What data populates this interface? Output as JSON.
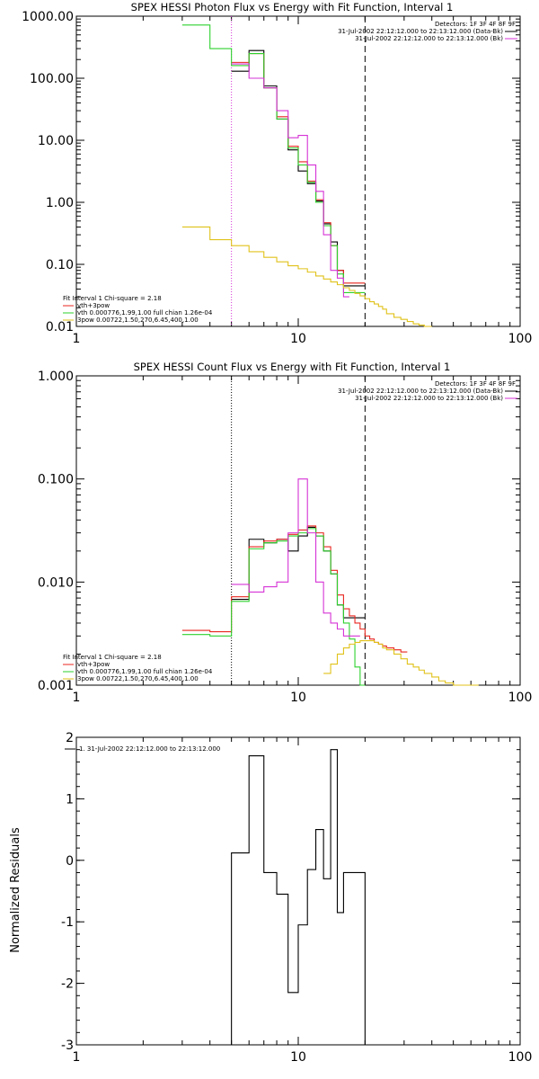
{
  "colors": {
    "black": "#000000",
    "red": "#e8261f",
    "green": "#2ed12e",
    "magenta": "#d633d6",
    "yellow": "#e0c21a"
  },
  "chart_data": [
    {
      "type": "line",
      "title": "SPEX HESSI Photon Flux vs Energy with Fit Function, Interval 1",
      "xscale": "log",
      "yscale": "log",
      "xlim": [
        1,
        100
      ],
      "ylim": [
        0.01,
        1000
      ],
      "xticks": [
        "1",
        "10",
        "100"
      ],
      "yticks": [
        "0.01",
        "0.10",
        "1.00",
        "10.00",
        "100.00",
        "1000.00"
      ],
      "vlines": [
        {
          "x": 5.0,
          "style": "dotted",
          "color": "magenta"
        },
        {
          "x": 20.0,
          "style": "dashed",
          "color": "black"
        }
      ],
      "legend_top": {
        "position": "top-right",
        "header": "Detectors: 1F 3F 4F 8F 9F",
        "entries": [
          {
            "label": "31-Jul-2002 22:12:12.000 to 22:13:12.000 (Data-Bk)",
            "color": "black"
          },
          {
            "label": "31-Jul-2002 22:12:12.000 to 22:13:12.000 (Bk)",
            "color": "magenta"
          }
        ]
      },
      "legend_fit": {
        "position": "bottom-left",
        "header": "Fit Interval 1    Chi-square = 2.18",
        "entries": [
          {
            "label": "vth+3pow",
            "color": "red"
          },
          {
            "label": "vth 0.000776,1.99,1.00  full chian 1.26e-04",
            "color": "green"
          },
          {
            "label": "3pow 0.00722,1.50,270,6.45,400,1.00",
            "color": "yellow"
          }
        ]
      },
      "series": [
        {
          "color": "black",
          "edges": [
            5,
            6,
            7,
            8,
            9,
            10,
            11,
            12,
            13,
            14,
            15,
            16,
            17,
            18,
            19,
            20
          ],
          "values": [
            130,
            280,
            75,
            22,
            7,
            3.2,
            2,
            1.05,
            0.45,
            0.23,
            0.08,
            0.045,
            0.045,
            0.045,
            0.045
          ]
        },
        {
          "color": "red",
          "edges": [
            5,
            6,
            7,
            8,
            9,
            10,
            11,
            12,
            13,
            14,
            15,
            16,
            17,
            18,
            19,
            20
          ],
          "values": [
            180,
            250,
            70,
            24,
            8,
            4.5,
            2.2,
            1.1,
            0.47,
            0.2,
            0.08,
            0.05,
            0.05,
            0.05,
            0.05
          ]
        },
        {
          "color": "green",
          "edges": [
            3,
            4,
            5,
            6,
            7,
            8,
            9,
            10,
            11,
            12,
            13,
            14,
            15,
            16,
            17,
            18,
            19,
            20
          ],
          "values": [
            720,
            300,
            160,
            250,
            70,
            22,
            7.5,
            4,
            2.1,
            1.0,
            0.42,
            0.2,
            0.07,
            0.035,
            0.035,
            0.035,
            0.035
          ]
        },
        {
          "color": "magenta",
          "edges": [
            5,
            6,
            7,
            8,
            9,
            10,
            11,
            12,
            13,
            14,
            15,
            16,
            17
          ],
          "values": [
            170,
            100,
            70,
            30,
            11,
            12,
            4,
            1.5,
            0.3,
            0.08,
            0.06,
            0.03
          ]
        },
        {
          "color": "yellow",
          "edges": [
            3,
            4,
            5,
            6,
            7,
            8,
            9,
            10,
            11,
            12,
            13,
            14,
            15,
            16,
            17,
            18,
            19,
            20,
            21,
            22,
            23,
            24,
            25,
            27,
            29,
            31,
            33,
            35,
            37,
            40
          ],
          "values": [
            0.4,
            0.25,
            0.2,
            0.16,
            0.13,
            0.11,
            0.095,
            0.085,
            0.075,
            0.065,
            0.058,
            0.052,
            0.047,
            0.042,
            0.038,
            0.034,
            0.031,
            0.028,
            0.025,
            0.023,
            0.021,
            0.019,
            0.016,
            0.014,
            0.013,
            0.012,
            0.011,
            0.0105,
            0.01
          ]
        }
      ]
    },
    {
      "type": "line",
      "title": "SPEX HESSI Count Flux vs Energy with Fit Function, Interval 1",
      "xscale": "log",
      "yscale": "log",
      "xlim": [
        1,
        100
      ],
      "ylim": [
        0.001,
        1.0
      ],
      "xticks": [
        "1",
        "10",
        "100"
      ],
      "yticks": [
        "0.001",
        "0.010",
        "0.100",
        "1.000"
      ],
      "vlines": [
        {
          "x": 5.0,
          "style": "dotted",
          "color": "black"
        },
        {
          "x": 20.0,
          "style": "dashed",
          "color": "black"
        }
      ],
      "legend_top": {
        "position": "top-right",
        "header": "Detectors: 1F 3F 4F 8F 9F",
        "entries": [
          {
            "label": "31-Jul-2002 22:12:12.000 to 22:13:12.000 (Data-Bk)",
            "color": "black"
          },
          {
            "label": "31-Jul-2002 22:12:12.000 to 22:13:12.000 (Bk)",
            "color": "magenta"
          }
        ]
      },
      "legend_fit": {
        "position": "bottom-left",
        "header": "Fit Interval 1    Chi-square = 2.18",
        "entries": [
          {
            "label": "vth+3pow",
            "color": "red"
          },
          {
            "label": "vth 0.000776,1.99,1.00  full chian 1.26e-04",
            "color": "green"
          },
          {
            "label": "3pow 0.00722,1.50,270,6.45,400,1.00",
            "color": "yellow"
          }
        ]
      },
      "series": [
        {
          "color": "black",
          "edges": [
            5,
            6,
            7,
            8,
            9,
            10,
            11,
            12,
            13,
            14,
            15,
            16,
            17,
            18,
            19,
            20
          ],
          "values": [
            0.0068,
            0.026,
            0.024,
            0.026,
            0.02,
            0.028,
            0.034,
            0.028,
            0.02,
            0.012,
            0.006,
            0.0045,
            0.0045,
            0.0045,
            0.0045
          ]
        },
        {
          "color": "red",
          "edges": [
            3,
            4,
            5,
            6,
            7,
            8,
            9,
            10,
            11,
            12,
            13,
            14,
            15,
            16,
            17,
            18,
            19,
            20,
            21,
            22,
            23,
            24,
            25,
            27,
            29,
            31
          ],
          "values": [
            0.0034,
            0.0033,
            0.0072,
            0.022,
            0.025,
            0.026,
            0.029,
            0.032,
            0.035,
            0.03,
            0.022,
            0.013,
            0.0075,
            0.0055,
            0.0047,
            0.004,
            0.0035,
            0.003,
            0.0028,
            0.0026,
            0.0025,
            0.0024,
            0.0023,
            0.0022,
            0.0021
          ]
        },
        {
          "color": "green",
          "edges": [
            3,
            4,
            5,
            6,
            7,
            8,
            9,
            10,
            11,
            12,
            13,
            14,
            15,
            16,
            17,
            18,
            19,
            20
          ],
          "values": [
            0.0031,
            0.003,
            0.0065,
            0.021,
            0.024,
            0.025,
            0.028,
            0.03,
            0.033,
            0.028,
            0.02,
            0.012,
            0.006,
            0.004,
            0.0028,
            0.0015,
            0.001
          ]
        },
        {
          "color": "magenta",
          "edges": [
            5,
            6,
            7,
            8,
            9,
            10,
            11,
            12,
            13,
            14,
            15,
            16,
            17,
            18,
            19
          ],
          "values": [
            0.0095,
            0.008,
            0.009,
            0.01,
            0.03,
            0.1,
            0.03,
            0.01,
            0.005,
            0.004,
            0.0035,
            0.003,
            0.003,
            0.003
          ]
        },
        {
          "color": "yellow",
          "edges": [
            13,
            14,
            15,
            16,
            17,
            18,
            19,
            20,
            21,
            22,
            23,
            24,
            25,
            27,
            29,
            31,
            33,
            35,
            37,
            40,
            43,
            46,
            50,
            55,
            60,
            65
          ],
          "values": [
            0.0013,
            0.0016,
            0.002,
            0.0023,
            0.0025,
            0.0026,
            0.0027,
            0.0027,
            0.0027,
            0.0026,
            0.0025,
            0.0023,
            0.0022,
            0.002,
            0.0018,
            0.0016,
            0.0015,
            0.0014,
            0.0013,
            0.0012,
            0.0011,
            0.00105,
            0.001,
            0.001,
            0.001
          ]
        }
      ]
    },
    {
      "type": "line",
      "title": "",
      "xscale": "log",
      "yscale": "linear",
      "xlim": [
        1,
        100
      ],
      "ylim": [
        -3,
        2
      ],
      "ylabel": "Normalized Residuals",
      "xticks": [
        "1",
        "10",
        "100"
      ],
      "yticks": [
        "-3",
        "-2",
        "-1",
        "0",
        "1",
        "2"
      ],
      "legend": {
        "position": "top-left",
        "entries": [
          {
            "label": "1. 31-Jul-2002 22:12:12.000 to 22:13:12.000",
            "color": "black"
          }
        ]
      },
      "series": [
        {
          "color": "black",
          "edges": [
            5,
            6,
            7,
            8,
            9,
            10,
            11,
            12,
            13,
            14,
            15,
            16,
            17,
            18,
            19,
            20
          ],
          "values": [
            0.12,
            1.7,
            -0.2,
            -0.55,
            -2.15,
            -1.05,
            -0.15,
            0.5,
            -0.3,
            1.8,
            -0.85,
            -0.2,
            -0.2,
            -0.2,
            -0.2
          ],
          "drop_to_floor": [
            5,
            20
          ]
        }
      ]
    }
  ]
}
